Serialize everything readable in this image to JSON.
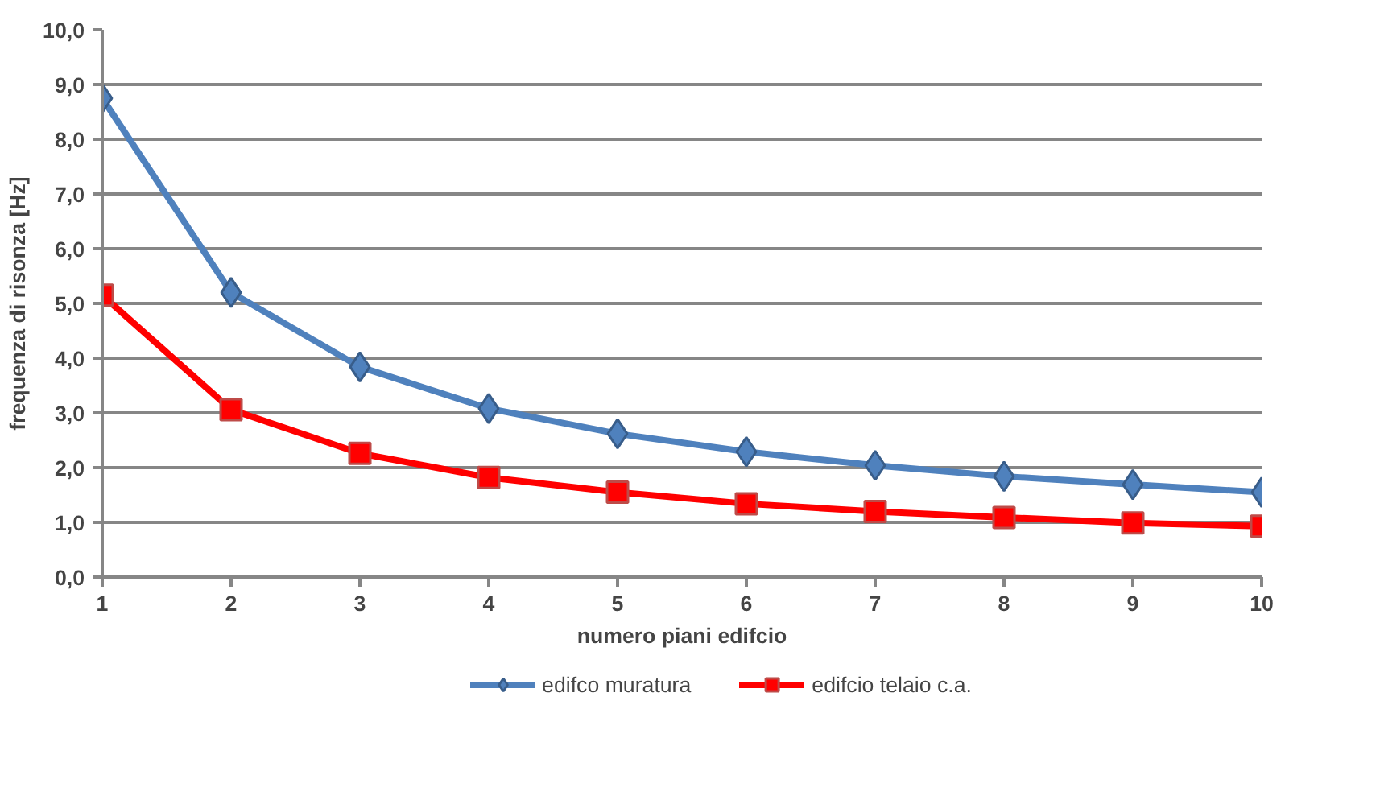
{
  "chart_data": {
    "type": "line",
    "xlabel": "numero piani edifcio",
    "ylabel": "frequenza di risonza [Hz]",
    "x": [
      1,
      2,
      3,
      4,
      5,
      6,
      7,
      8,
      9,
      10
    ],
    "series": [
      {
        "name": "edifco muratura",
        "color": "#4f81bd",
        "marker": "diamond",
        "values": [
          8.75,
          5.2,
          3.84,
          3.08,
          2.62,
          2.29,
          2.04,
          1.84,
          1.69,
          1.55
        ]
      },
      {
        "name": "edifcio telaio c.a.",
        "color": "#ff0000",
        "marker": "square",
        "values": [
          5.15,
          3.06,
          2.26,
          1.82,
          1.55,
          1.34,
          1.2,
          1.09,
          0.99,
          0.93
        ]
      }
    ],
    "xlim": [
      1,
      10
    ],
    "xticks": [
      1,
      2,
      3,
      4,
      5,
      6,
      7,
      8,
      9,
      10
    ],
    "ylim": [
      0,
      10
    ],
    "yticks": [
      {
        "value": 0,
        "label": "0,0"
      },
      {
        "value": 1,
        "label": "1,0"
      },
      {
        "value": 2,
        "label": "2,0"
      },
      {
        "value": 3,
        "label": "3,0"
      },
      {
        "value": 4,
        "label": "4,0"
      },
      {
        "value": 5,
        "label": "5,0"
      },
      {
        "value": 6,
        "label": "6,0"
      },
      {
        "value": 7,
        "label": "7,0"
      },
      {
        "value": 8,
        "label": "8,0"
      },
      {
        "value": 9,
        "label": "9,0"
      },
      {
        "value": 10,
        "label": "10,0"
      }
    ],
    "grid": "y",
    "legend": "bottom",
    "line_style": "solid"
  }
}
